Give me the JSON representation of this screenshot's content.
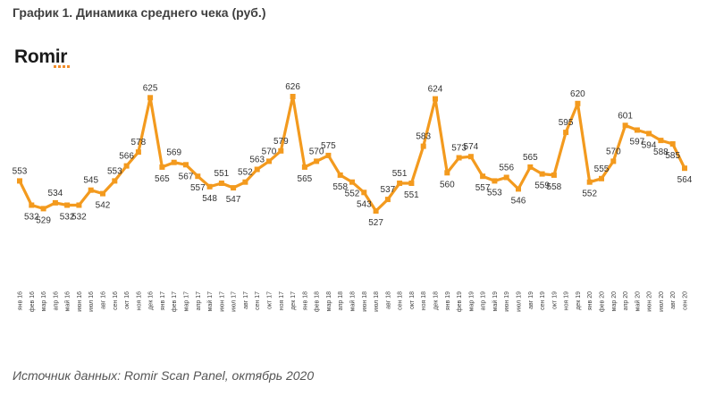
{
  "header": {
    "title": "График 1. Динамика среднего чека (руб.)",
    "logo_text": "Romir"
  },
  "footer": {
    "source": "Источник данных: Romir Scan Panel, октябрь 2020"
  },
  "colors": {
    "line": "#f39a1e",
    "marker": "#f39a1e",
    "logo_accent": "#f28c28"
  },
  "chart_data": {
    "type": "line",
    "title": "График 1. Динамика среднего чека (руб.)",
    "xlabel": "",
    "ylabel": "",
    "grid": false,
    "legend": "none",
    "categories": [
      "янв 16",
      "фев 16",
      "мар 16",
      "апр 16",
      "май 16",
      "июн 16",
      "июл 16",
      "авг 16",
      "сен 16",
      "окт 16",
      "ноя 16",
      "дек 16",
      "янв 17",
      "фев 17",
      "мар 17",
      "апр 17",
      "май 17",
      "июн 17",
      "июл 17",
      "авг 17",
      "сен 17",
      "окт 17",
      "ноя 17",
      "дек 17",
      "янв 18",
      "фев 18",
      "мар 18",
      "апр 18",
      "май 18",
      "июн 18",
      "июл 18",
      "авг 18",
      "сен 18",
      "окт 18",
      "ноя 18",
      "дек 18",
      "янв 19",
      "фев 19",
      "мар 19",
      "апр 19",
      "май 19",
      "июн 19",
      "июл 19",
      "авг 19",
      "сен 19",
      "окт 19",
      "ноя 19",
      "дек 19",
      "янв 20",
      "фев 20",
      "мар 20",
      "апр 20",
      "май 20",
      "июн 20",
      "июл 20",
      "авг 20",
      "сен 20"
    ],
    "series": [
      {
        "values": [
          553,
          532,
          529,
          534,
          532,
          532,
          545,
          542,
          553,
          566,
          578,
          625,
          565,
          569,
          567,
          557,
          548,
          551,
          547,
          552,
          563,
          570,
          579,
          626,
          565,
          570,
          575,
          558,
          552,
          543,
          527,
          537,
          551,
          551,
          583,
          624,
          560,
          573,
          574,
          557,
          553,
          556,
          546,
          565,
          559,
          558,
          595,
          620,
          552,
          555,
          570,
          601,
          597,
          594,
          588,
          585,
          564
        ]
      }
    ],
    "ylim": [
      500,
      640
    ]
  }
}
